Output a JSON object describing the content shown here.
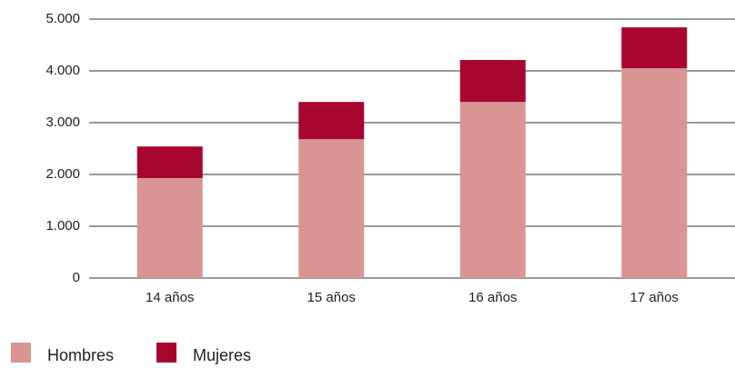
{
  "chart_data": {
    "type": "stacked_bar",
    "categories": [
      "14 años",
      "15 años",
      "16 años",
      "17 años"
    ],
    "series": [
      {
        "name": "Hombres",
        "color": "#d89593",
        "values": [
          1930,
          2680,
          3400,
          4050
        ]
      },
      {
        "name": "Mujeres",
        "color": "#a8062f",
        "values": [
          610,
          720,
          810,
          790
        ]
      }
    ],
    "ylim": [
      0,
      5000
    ],
    "yticks": [
      0,
      {
        "value": 1000,
        "label": "1.000"
      },
      {
        "value": 2000,
        "label": "2.000"
      },
      {
        "value": 3000,
        "label": "3.000"
      },
      {
        "value": 4000,
        "label": "4.000"
      },
      {
        "value": 5000,
        "label": "5.000"
      }
    ],
    "grid": true,
    "legend": "bottom-left"
  }
}
